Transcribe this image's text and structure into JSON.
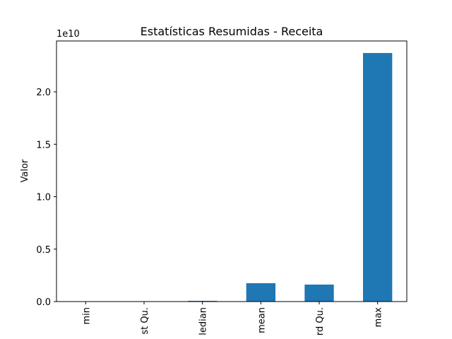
{
  "chart_data": {
    "type": "bar",
    "title": "Estatísticas Resumidas - Receita",
    "y_label": "Valor",
    "y_offset": "1e10",
    "categories": [
      "min",
      "st Qu.",
      "ledian",
      "mean",
      "rd Qu.",
      "max"
    ],
    "values": [
      0.0002,
      0.001,
      0.007,
      0.175,
      0.162,
      2.37
    ],
    "color": "#1f77b4",
    "ylim": [
      0,
      2.485
    ],
    "yticks": [
      {
        "value": 0,
        "label": "0.0"
      },
      0.5,
      {
        "value": 1,
        "label": "1.0"
      },
      1.5,
      {
        "value": 2,
        "label": "2.0"
      }
    ],
    "grid": false
  }
}
